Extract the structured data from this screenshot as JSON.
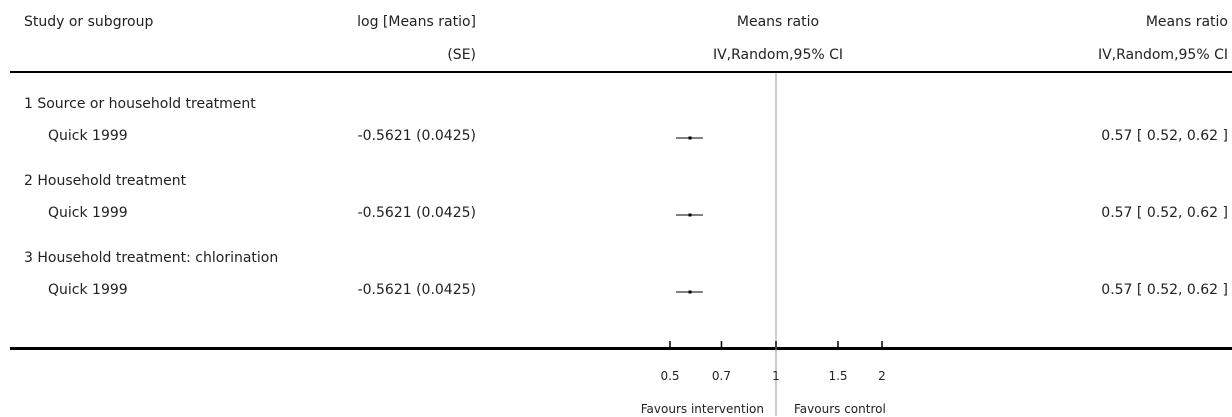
{
  "header": {
    "study_col": "Study or subgroup",
    "log_col_line1": "log [Means ratio]",
    "log_col_line2": "(SE)",
    "plot_col_line1": "Means ratio",
    "plot_col_line2": "IV,Random,95% CI",
    "est_col_line1": "Means ratio",
    "est_col_line2": "IV,Random,95% CI"
  },
  "footer": {
    "favours_left": "Favours intervention",
    "favours_right": "Favours control"
  },
  "chart_data": {
    "type": "forest",
    "x_scale": "log",
    "xlim": [
      0.4,
      2.3
    ],
    "reference_line": 1,
    "x_ticks": [
      {
        "value": 0.5,
        "label": "0.5"
      },
      {
        "value": 0.7,
        "label": "0.7"
      },
      {
        "value": 1,
        "label": "1"
      },
      {
        "value": 1.5,
        "label": "1.5"
      },
      {
        "value": 2,
        "label": "2"
      }
    ],
    "subgroups": [
      {
        "label": "1 Source or household treatment",
        "studies": [
          {
            "study": "Quick 1999",
            "log_se": "-0.5621 (0.0425)",
            "estimate": 0.57,
            "ci_low": 0.52,
            "ci_high": 0.62,
            "ci_text": "0.57 [ 0.52, 0.62 ]"
          }
        ]
      },
      {
        "label": "2 Household treatment",
        "studies": [
          {
            "study": "Quick 1999",
            "log_se": "-0.5621 (0.0425)",
            "estimate": 0.57,
            "ci_low": 0.52,
            "ci_high": 0.62,
            "ci_text": "0.57 [ 0.52, 0.62 ]"
          }
        ]
      },
      {
        "label": "3 Household treatment: chlorination",
        "studies": [
          {
            "study": "Quick 1999",
            "log_se": "-0.5621 (0.0425)",
            "estimate": 0.57,
            "ci_low": 0.52,
            "ci_high": 0.62,
            "ci_text": "0.57 [ 0.52, 0.62 ]"
          }
        ]
      }
    ]
  }
}
